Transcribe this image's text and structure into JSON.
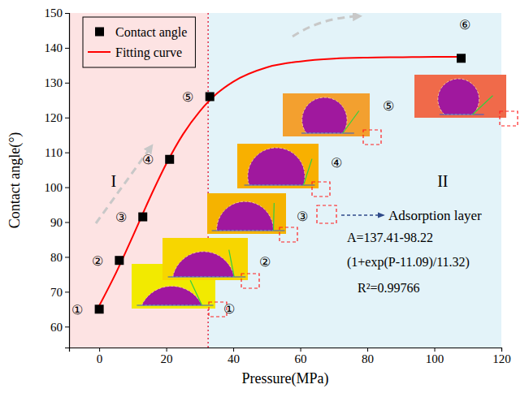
{
  "chart_data": {
    "type": "scatter",
    "xlabel": "Pressure(MPa)",
    "ylabel": "Contact angle(°)",
    "xlim": [
      -9,
      120
    ],
    "xticks": [
      0,
      20,
      40,
      60,
      80,
      100,
      120
    ],
    "ylim": [
      54,
      150
    ],
    "yticks": [
      60,
      70,
      80,
      90,
      100,
      110,
      120,
      130,
      140,
      150
    ],
    "legend": "upper left",
    "regions": [
      {
        "label": "I",
        "from": -9,
        "to": 32.5,
        "color": "#fde3e3"
      },
      {
        "label": "II",
        "from": 32.5,
        "to": 120,
        "color": "#e3f3f9"
      }
    ],
    "series": [
      {
        "name": "Contact angle",
        "type": "scatter",
        "marker": "square",
        "color": "#000000",
        "x": [
          0,
          6,
          13,
          21,
          33,
          108
        ],
        "values": [
          65,
          79,
          91.5,
          108,
          126,
          137
        ],
        "labels": [
          "①",
          "②",
          "③",
          "④",
          "⑤",
          "⑥"
        ]
      },
      {
        "name": "Fitting curve",
        "type": "line",
        "line_style": "solid",
        "color": "#ff0000",
        "x": [
          0,
          5,
          10,
          15,
          20,
          25,
          30,
          35,
          40,
          50,
          60,
          70,
          80,
          90,
          100,
          108
        ],
        "values": [
          66,
          75.4,
          85.9,
          96.7,
          106.7,
          115.2,
          121.8,
          126.8,
          130.3,
          134.4,
          136.1,
          136.9,
          137.2,
          137.3,
          137.4,
          137.4
        ]
      }
    ],
    "annotations": [
      "Adsorption layer",
      "A=137.41-98.22",
      "(1+exp(P-11.09)/11.32)",
      "R²=0.99766"
    ]
  }
}
